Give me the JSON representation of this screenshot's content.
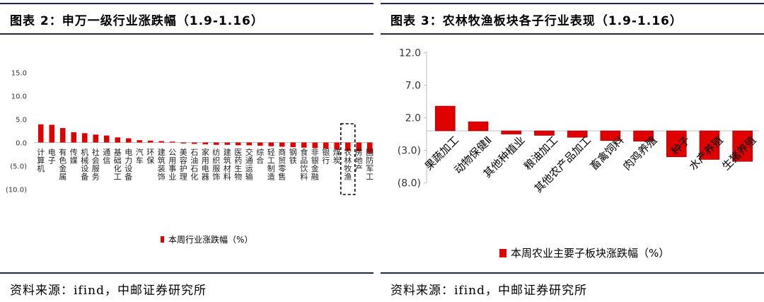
{
  "colors": {
    "bar": "#e00000",
    "rule": "#1f2a44",
    "axis": "#bfbfbf"
  },
  "left": {
    "title": "图表 2：申万一级行业涨跌幅（1.9-1.16）",
    "source": "资料来源：ifind，中邮证券研究所",
    "chart_data": {
      "type": "bar",
      "title": "",
      "xlabel": "",
      "ylabel": "",
      "ylim": [
        -10,
        15
      ],
      "ytick_labels": [
        "15.0",
        "10.0",
        "5.0",
        "0.0",
        "(5.0)",
        "(10.0)"
      ],
      "ytick_values": [
        15,
        10,
        5,
        0,
        -5,
        -10
      ],
      "highlight_category": "农林牧渔",
      "legend_position": "bottom-left",
      "categories": [
        "计算机",
        "电子",
        "有色金属",
        "传媒",
        "机械设备",
        "社会服务",
        "通信",
        "基础化工",
        "电力设备",
        "汽车",
        "环保",
        "建筑装饰",
        "公用事业",
        "美容护理",
        "石油石化",
        "家用电器",
        "纺织服饰",
        "建筑材料",
        "医药生物",
        "交通运输",
        "综合",
        "轻工制造",
        "商贸零售",
        "钢铁",
        "食品饮料",
        "非银金融",
        "银行",
        "煤炭",
        "农林牧渔",
        "房地产",
        "国防军工"
      ],
      "series": [
        {
          "name": "本周行业涨跌幅（%）",
          "values": [
            3.9,
            3.8,
            3.1,
            2.2,
            2.0,
            1.7,
            1.5,
            1.1,
            0.9,
            0.5,
            0.4,
            0.3,
            0.2,
            -0.2,
            -0.3,
            -0.4,
            -0.5,
            -0.5,
            -0.6,
            -0.6,
            -0.7,
            -0.8,
            -0.9,
            -1.0,
            -1.1,
            -1.2,
            -1.3,
            -1.5,
            -1.8,
            -1.9,
            -2.3
          ]
        }
      ]
    }
  },
  "right": {
    "title": "图表 3：农林牧渔板块各子行业表现（1.9-1.16）",
    "source": "资料来源：ifind，中邮证券研究所",
    "chart_data": {
      "type": "bar",
      "title": "",
      "xlabel": "",
      "ylabel": "",
      "ylim": [
        -8,
        12
      ],
      "ytick_labels": [
        "12.0",
        "7.0",
        "2.0",
        "(3.0)",
        "(8.0)"
      ],
      "ytick_values": [
        12,
        7,
        2,
        -3,
        -8
      ],
      "legend_position": "bottom",
      "categories": [
        "果蔬加工",
        "动物保健Ⅱ",
        "其他种植业",
        "粮油加工",
        "其他农产品加工",
        "畜禽饲料",
        "肉鸡养殖",
        "种子",
        "水产养殖",
        "生猪养殖"
      ],
      "series": [
        {
          "name": "本周农业主要子板块涨跌幅（%）",
          "values": [
            3.8,
            1.4,
            -0.5,
            -0.7,
            -1.0,
            -1.5,
            -1.6,
            -4.0,
            -4.4,
            -4.7
          ]
        }
      ]
    }
  }
}
